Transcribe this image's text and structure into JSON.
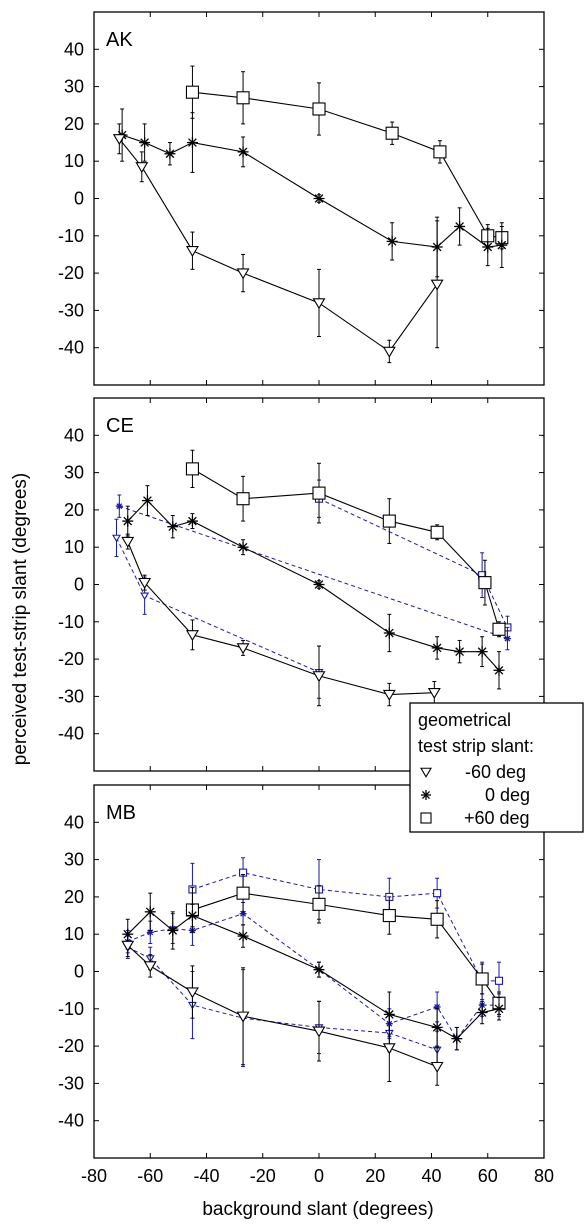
{
  "figure": {
    "ylabel": "perceived test-strip slant (degrees)",
    "xlabel": "background slant (degrees)",
    "xlim": [
      -80,
      80
    ],
    "ylim": [
      -50,
      50
    ],
    "xticks": [
      "-80",
      "-60",
      "-40",
      "-20",
      "0",
      "20",
      "40",
      "60",
      "80"
    ],
    "yticks": [
      "40",
      "30",
      "20",
      "10",
      "0",
      "-10",
      "-20",
      "-30",
      "-40"
    ],
    "colors": {
      "solid": "#000000",
      "dashed": "#1a1aa6"
    }
  },
  "legend": {
    "title_line1": "geometrical",
    "title_line2": "test strip slant:",
    "entries": [
      {
        "marker": "triangle-down",
        "label": "-60 deg"
      },
      {
        "marker": "asterisk",
        "label": "0 deg"
      },
      {
        "marker": "square",
        "label": "+60 deg"
      }
    ]
  },
  "chart_data": [
    {
      "type": "line",
      "panel": "AK",
      "xlabel": "background slant (degrees)",
      "ylabel": "perceived test-strip slant (degrees)",
      "xlim": [
        -80,
        80
      ],
      "ylim": [
        -50,
        50
      ],
      "series": [
        {
          "test_slant": "+60 deg",
          "marker": "square",
          "style": "solid",
          "x": [
            -45,
            -27,
            0,
            26,
            43,
            60,
            65
          ],
          "y": [
            28.5,
            27,
            24,
            17.5,
            12.5,
            -10,
            -10.5
          ],
          "err": [
            7,
            7,
            7,
            3,
            3,
            3,
            3
          ]
        },
        {
          "test_slant": "0 deg",
          "marker": "asterisk",
          "style": "solid",
          "x": [
            -70,
            -62,
            -53,
            -45,
            -27,
            0,
            26,
            42,
            50,
            60,
            65
          ],
          "y": [
            17,
            15,
            12,
            15,
            12.5,
            0,
            -11.5,
            -13,
            -7.5,
            -13,
            -12.5
          ],
          "err": [
            7,
            5,
            3,
            8,
            4,
            1,
            5,
            8,
            5,
            5,
            6
          ]
        },
        {
          "test_slant": "-60 deg",
          "marker": "triangle-down",
          "style": "solid",
          "x": [
            -71,
            -63,
            -45,
            -27,
            0,
            25,
            42
          ],
          "y": [
            16,
            8.5,
            -14,
            -20,
            -28,
            -41,
            -23
          ],
          "err": [
            4,
            4,
            5,
            5,
            9,
            3,
            17
          ]
        }
      ]
    },
    {
      "type": "line",
      "panel": "CE",
      "xlabel": "background slant (degrees)",
      "ylabel": "perceived test-strip slant (degrees)",
      "xlim": [
        -80,
        80
      ],
      "ylim": [
        -50,
        50
      ],
      "series": [
        {
          "test_slant": "+60 deg",
          "marker": "square",
          "style": "solid",
          "x": [
            -45,
            -27,
            0,
            25,
            42,
            59,
            64
          ],
          "y": [
            31,
            23,
            24.5,
            17,
            14,
            0.5,
            -12
          ],
          "err": [
            5,
            6,
            8,
            6,
            2,
            6,
            2
          ]
        },
        {
          "test_slant": "0 deg",
          "marker": "asterisk",
          "style": "solid",
          "x": [
            -68,
            -61,
            -52,
            -45,
            -27,
            0,
            25,
            42,
            50,
            58,
            64
          ],
          "y": [
            17,
            22.5,
            15.5,
            17,
            10,
            0,
            -13,
            -17,
            -18,
            -18,
            -23
          ],
          "err": [
            4,
            4,
            3,
            2,
            2,
            1,
            5,
            3,
            3,
            4,
            5
          ]
        },
        {
          "test_slant": "-60 deg",
          "marker": "triangle-down",
          "style": "solid",
          "x": [
            -68,
            -62,
            -45,
            -27,
            0,
            25,
            41
          ],
          "y": [
            11.5,
            0.5,
            -13.5,
            -17,
            -24.5,
            -29.5,
            -29
          ],
          "err": [
            2,
            2,
            4,
            2,
            8,
            3,
            3
          ]
        },
        {
          "test_slant": "+60 deg",
          "marker": "square",
          "style": "dashed",
          "x": [
            0,
            58,
            67
          ],
          "y": [
            23,
            2.5,
            -11.5
          ],
          "err": [
            5,
            6,
            3
          ]
        },
        {
          "test_slant": "0 deg",
          "marker": "asterisk",
          "style": "dashed",
          "x": [
            -71,
            67
          ],
          "y": [
            21,
            -14.5
          ],
          "err": [
            3,
            3
          ]
        },
        {
          "test_slant": "-60 deg",
          "marker": "triangle-down",
          "style": "dashed",
          "x": [
            -72,
            -62,
            0
          ],
          "y": [
            12.5,
            -3,
            -23.5
          ],
          "err": [
            5,
            5,
            7
          ]
        }
      ]
    },
    {
      "type": "line",
      "panel": "MB",
      "xlabel": "background slant (degrees)",
      "ylabel": "perceived test-strip slant (degrees)",
      "xlim": [
        -80,
        80
      ],
      "ylim": [
        -50,
        50
      ],
      "series": [
        {
          "test_slant": "+60 deg",
          "marker": "square",
          "style": "solid",
          "x": [
            -45,
            -27,
            0,
            25,
            42,
            58,
            64
          ],
          "y": [
            16.5,
            21,
            18,
            15,
            14,
            -2,
            -8.5
          ],
          "err": [
            6,
            5,
            5,
            5,
            5,
            4,
            3
          ]
        },
        {
          "test_slant": "0 deg",
          "marker": "asterisk",
          "style": "solid",
          "x": [
            -68,
            -60,
            -52,
            -45,
            -27,
            0,
            25,
            42,
            49,
            58,
            64
          ],
          "y": [
            10,
            16,
            11,
            15,
            9.5,
            0.5,
            -11.5,
            -15,
            -18,
            -11,
            -10
          ],
          "err": [
            4,
            5,
            5,
            3,
            3,
            2,
            6,
            5,
            3,
            3,
            3
          ]
        },
        {
          "test_slant": "-60 deg",
          "marker": "triangle-down",
          "style": "solid",
          "x": [
            -68,
            -60,
            -45,
            -27,
            0,
            25,
            42
          ],
          "y": [
            7,
            1.5,
            -5.5,
            -12,
            -16,
            -20.5,
            -25.5
          ],
          "err": [
            3,
            3,
            7,
            13,
            8,
            9,
            5
          ]
        },
        {
          "test_slant": "+60 deg",
          "marker": "square",
          "style": "dashed",
          "x": [
            -45,
            -27,
            0,
            25,
            42,
            58,
            64
          ],
          "y": [
            22,
            26.5,
            22,
            20,
            21,
            -2.5,
            -2.5
          ],
          "err": [
            7,
            4,
            8,
            5,
            4,
            5,
            5
          ]
        },
        {
          "test_slant": "0 deg",
          "marker": "asterisk",
          "style": "dashed",
          "x": [
            -68,
            -60,
            -52,
            -45,
            -27,
            0,
            25,
            42,
            49,
            58,
            64
          ],
          "y": [
            8,
            10.5,
            11.5,
            11,
            15.5,
            0.5,
            -14,
            -9.5,
            -18,
            -9,
            -9
          ],
          "err": [
            3,
            3,
            4,
            4,
            3,
            2,
            4,
            4,
            3,
            3,
            3
          ]
        },
        {
          "test_slant": "-60 deg",
          "marker": "triangle-down",
          "style": "dashed",
          "x": [
            -68,
            -60,
            -45,
            -27,
            0,
            25,
            42
          ],
          "y": [
            6.5,
            3.5,
            -9,
            -12.5,
            -15,
            -16.5,
            -21
          ],
          "err": [
            3,
            3,
            9,
            13,
            7,
            5,
            5
          ]
        }
      ]
    }
  ]
}
